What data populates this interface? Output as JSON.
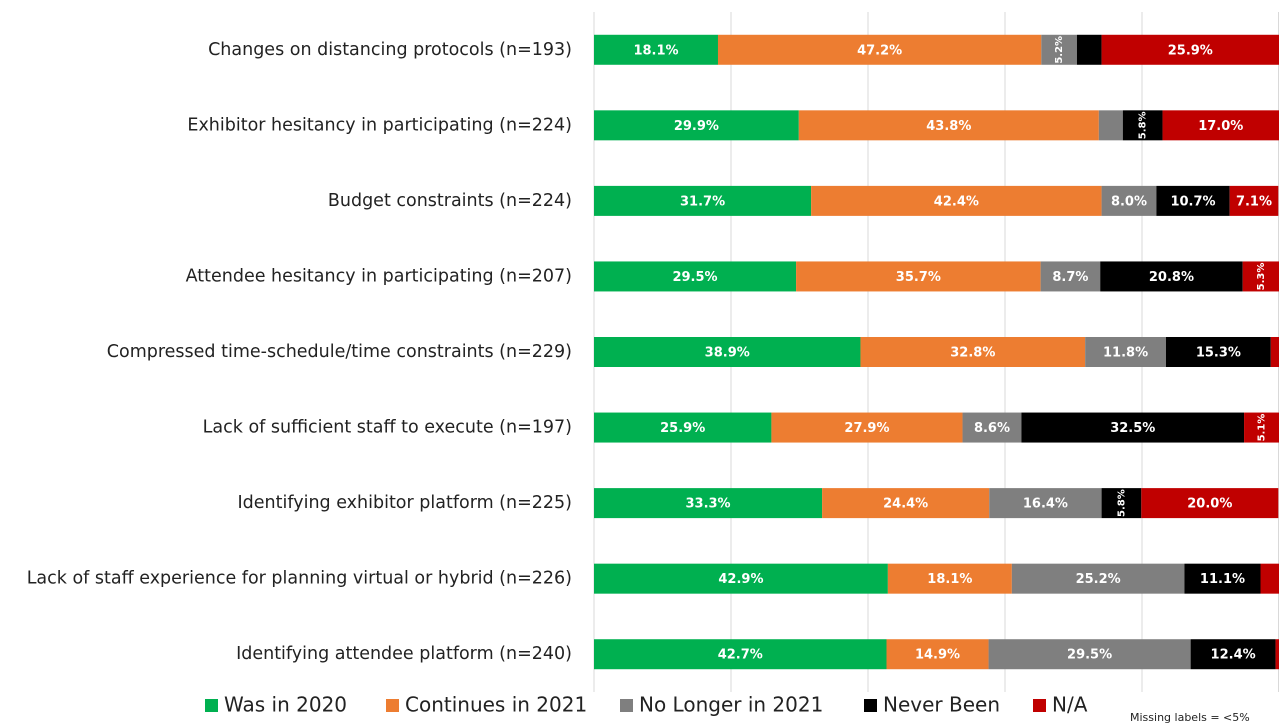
{
  "chart_data": {
    "type": "stacked-bar-horizontal",
    "categories": [
      "Changes on distancing protocols (n=193)",
      "Exhibitor hesitancy in participating (n=224)",
      "Budget constraints (n=224)",
      "Attendee hesitancy in participating (n=207)",
      "Compressed time-schedule/time constraints (n=229)",
      "Lack of sufficient staff to execute (n=197)",
      "Identifying exhibitor platform (n=225)",
      "Lack of staff experience for planning virtual or hybrid (n=226)",
      "Identifying attendee platform (n=240)"
    ],
    "series": [
      {
        "name": "Was in 2020",
        "color": "#00b050",
        "values": [
          18.1,
          29.9,
          31.7,
          29.5,
          38.9,
          25.9,
          33.3,
          42.9,
          42.7
        ],
        "value_labels": [
          "18.1%",
          "29.9%",
          "31.7%",
          "29.5%",
          "38.9%",
          "25.9%",
          "33.3%",
          "42.9%",
          "42.7%"
        ]
      },
      {
        "name": "Continues in 2021",
        "color": "#ed7d31",
        "values": [
          47.2,
          43.8,
          42.4,
          35.7,
          32.8,
          27.9,
          24.4,
          18.1,
          14.9
        ],
        "value_labels": [
          "47.2%",
          "43.8%",
          "42.4%",
          "35.7%",
          "32.8%",
          "27.9%",
          "24.4%",
          "18.1%",
          "14.9%"
        ]
      },
      {
        "name": "No Longer in 2021",
        "color": "#7f7f7f",
        "values": [
          5.2,
          3.5,
          8.0,
          8.7,
          11.8,
          8.6,
          16.4,
          25.2,
          29.5
        ],
        "value_labels": [
          "5.2%",
          null,
          "8.0%",
          "8.7%",
          "11.8%",
          "8.6%",
          "16.4%",
          "25.2%",
          "29.5%"
        ]
      },
      {
        "name": "Never Been",
        "color": "#000000",
        "values": [
          3.6,
          5.8,
          10.7,
          20.8,
          15.3,
          32.5,
          5.8,
          11.1,
          12.4
        ],
        "value_labels": [
          null,
          "5.8%",
          "10.7%",
          "20.8%",
          "15.3%",
          "32.5%",
          "5.8%",
          "11.1%",
          "12.4%"
        ]
      },
      {
        "name": "N/A",
        "color": "#c00000",
        "values": [
          25.9,
          17.0,
          7.1,
          5.3,
          1.2,
          5.1,
          20.0,
          2.7,
          0.5
        ],
        "value_labels": [
          "25.9%",
          "17.0%",
          "7.1%",
          "5.3%",
          null,
          "5.1%",
          "20.0%",
          null,
          null
        ]
      }
    ],
    "xlim": [
      0,
      100
    ],
    "xticks": [
      0,
      20,
      40,
      60,
      80,
      100
    ],
    "grid": true,
    "annotation": "Missing labels = <5%"
  }
}
